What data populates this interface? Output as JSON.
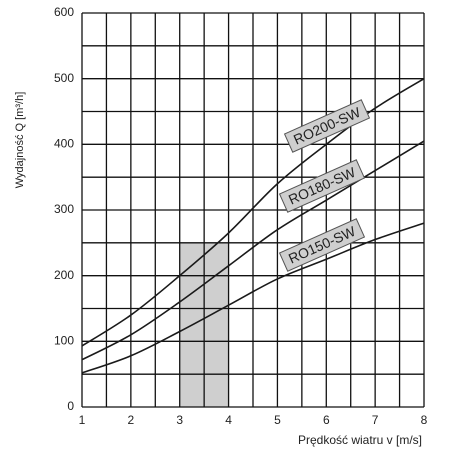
{
  "chart_data": {
    "type": "line",
    "x_label": "Prędkość wiatru v [m/s]",
    "y_label": "Wydajność Q [m³/h]",
    "x": [
      1,
      2,
      3,
      4,
      5,
      6,
      7,
      8
    ],
    "series": [
      {
        "name": "RO200-SW",
        "color": "#1a1a1a",
        "values": [
          93,
          140,
          200,
          265,
          340,
          400,
          455,
          500
        ]
      },
      {
        "name": "RO180-SW",
        "color": "#1a1a1a",
        "values": [
          72,
          110,
          160,
          215,
          270,
          315,
          360,
          405
        ]
      },
      {
        "name": "RO150-SW",
        "color": "#1a1a1a",
        "values": [
          52,
          78,
          115,
          155,
          195,
          225,
          255,
          280
        ]
      }
    ],
    "xlim": [
      1,
      8
    ],
    "ylim": [
      0,
      600
    ],
    "xticks": [
      1,
      2,
      3,
      4,
      5,
      6,
      7,
      8
    ],
    "yticks": [
      0,
      100,
      200,
      300,
      400,
      500,
      600
    ],
    "x_gridlines": [
      1,
      1.5,
      2,
      2.5,
      3,
      3.5,
      4,
      4.5,
      5,
      5.5,
      6,
      6.5,
      7,
      7.5,
      8
    ],
    "y_gridlines": [
      0,
      50,
      100,
      150,
      200,
      250,
      300,
      350,
      400,
      450,
      500,
      550,
      600
    ],
    "shaded_region": {
      "x": [
        3,
        4
      ],
      "y": [
        0,
        250
      ],
      "color": "#cfcfcf"
    },
    "grid": true
  }
}
